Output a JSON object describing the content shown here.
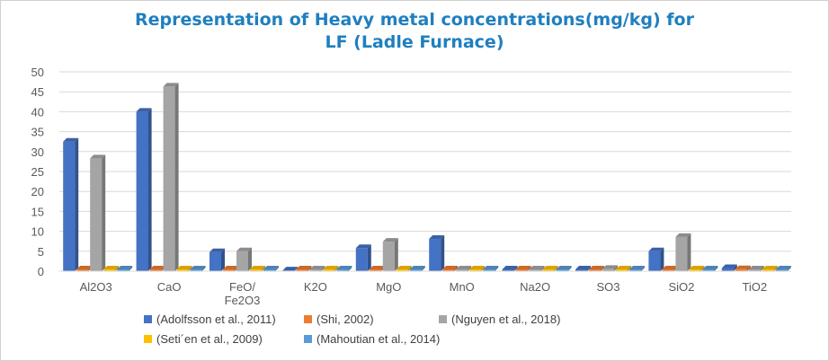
{
  "chart_data": {
    "type": "bar",
    "title_line1": "Representation of  Heavy metal concentrations(mg/kg) for",
    "title_line2": "LF (Ladle Furnace)",
    "xlabel": "",
    "ylabel": "",
    "ylim": [
      0,
      50
    ],
    "yticks": [
      0,
      5,
      10,
      15,
      20,
      25,
      30,
      35,
      40,
      45,
      50
    ],
    "grid": true,
    "legend_position": "bottom",
    "categories": [
      "Al2O3",
      "CaO",
      "FeO/\nFe2O3",
      "K2O",
      "MgO",
      "MnO",
      "Na2O",
      "SO3",
      "SiO2",
      "TiO2"
    ],
    "series": [
      {
        "name": "(Adolfsson et al., 2011)",
        "color": "#4472c4",
        "values": [
          32.5,
          40,
          4.8,
          0.2,
          5.8,
          8.1,
          0,
          0,
          5,
          0.8
        ]
      },
      {
        "name": "(Shi, 2002)",
        "color": "#ed7d31",
        "values": [
          0,
          0,
          0,
          0,
          0,
          0,
          0,
          0,
          0,
          0.5
        ]
      },
      {
        "name": "(Nguyen et al., 2018)",
        "color": "#a5a5a5",
        "values": [
          28.3,
          46.3,
          5,
          0,
          7.4,
          0,
          0,
          0.6,
          8.6,
          0
        ]
      },
      {
        "name": "(Seti´en et al., 2009)",
        "color": "#ffc000",
        "values": [
          0,
          0,
          0,
          0,
          0,
          0,
          0,
          0,
          0,
          0
        ]
      },
      {
        "name": "(Mahoutian et al., 2014)",
        "color": "#5b9bd5",
        "values": [
          0,
          0,
          0,
          0,
          0,
          0,
          0,
          0,
          0,
          0
        ]
      }
    ]
  }
}
